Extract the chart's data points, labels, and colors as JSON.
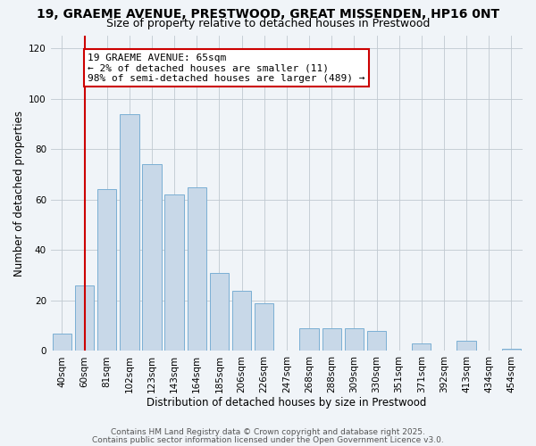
{
  "title": "19, GRAEME AVENUE, PRESTWOOD, GREAT MISSENDEN, HP16 0NT",
  "subtitle": "Size of property relative to detached houses in Prestwood",
  "xlabel": "Distribution of detached houses by size in Prestwood",
  "ylabel": "Number of detached properties",
  "bar_labels": [
    "40sqm",
    "60sqm",
    "81sqm",
    "102sqm",
    "123sqm",
    "143sqm",
    "164sqm",
    "185sqm",
    "206sqm",
    "226sqm",
    "247sqm",
    "268sqm",
    "288sqm",
    "309sqm",
    "330sqm",
    "351sqm",
    "371sqm",
    "392sqm",
    "413sqm",
    "434sqm",
    "454sqm"
  ],
  "bar_values": [
    7,
    26,
    64,
    94,
    74,
    62,
    65,
    31,
    24,
    19,
    0,
    9,
    9,
    9,
    8,
    0,
    3,
    0,
    4,
    0,
    1
  ],
  "bar_color": "#c8d8e8",
  "bar_edge_color": "#7bafd4",
  "vline_x": 1,
  "vline_color": "#cc0000",
  "ylim": [
    0,
    125
  ],
  "yticks": [
    0,
    20,
    40,
    60,
    80,
    100,
    120
  ],
  "annotation_title": "19 GRAEME AVENUE: 65sqm",
  "annotation_line1": "← 2% of detached houses are smaller (11)",
  "annotation_line2": "98% of semi-detached houses are larger (489) →",
  "annotation_box_color": "#ffffff",
  "annotation_border_color": "#cc0000",
  "bg_color": "#f0f4f8",
  "footer1": "Contains HM Land Registry data © Crown copyright and database right 2025.",
  "footer2": "Contains public sector information licensed under the Open Government Licence v3.0.",
  "title_fontsize": 10,
  "subtitle_fontsize": 9,
  "axis_label_fontsize": 8.5,
  "tick_fontsize": 7.5,
  "annotation_fontsize": 8,
  "footer_fontsize": 6.5
}
